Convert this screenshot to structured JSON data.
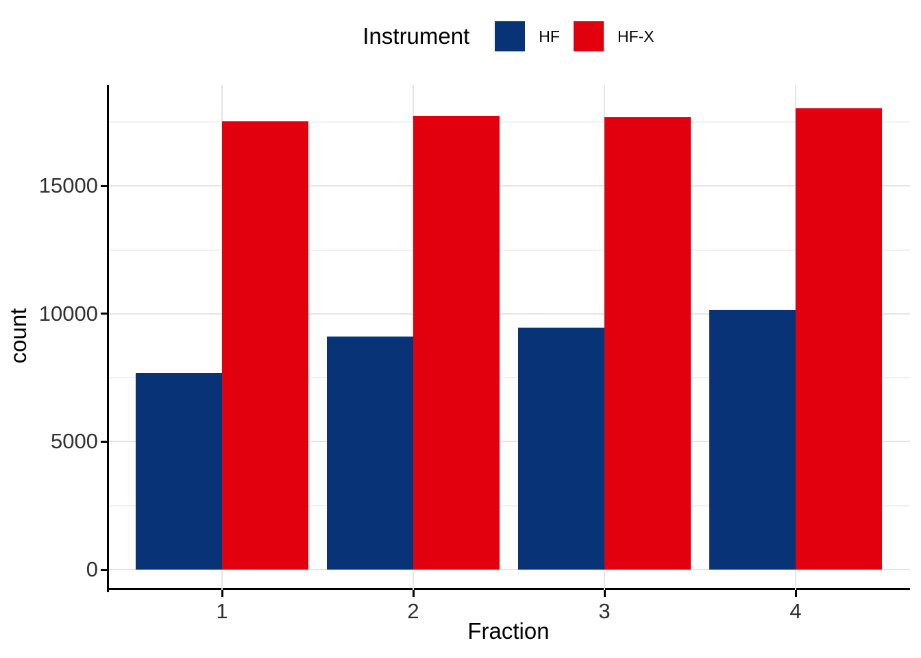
{
  "chart_data": {
    "type": "bar",
    "title": "",
    "xlabel": "Fraction",
    "ylabel": "count",
    "legend": {
      "title": "Instrument",
      "position": "top"
    },
    "categories": [
      "1",
      "2",
      "3",
      "4"
    ],
    "series": [
      {
        "name": "HF",
        "color": "#093377",
        "values": [
          7690,
          9110,
          9450,
          10160
        ]
      },
      {
        "name": "HF-X",
        "color": "#E3000E",
        "values": [
          17530,
          17740,
          17680,
          18020
        ]
      }
    ],
    "ylim": [
      0,
      18900
    ],
    "yticks": [
      0,
      5000,
      10000,
      15000
    ],
    "y_minor_gridlines": [
      2500,
      7500,
      12500,
      17500
    ],
    "xticks": [
      1,
      2,
      3,
      4
    ],
    "grid": "horizontal major+minor, vertical major at ticks",
    "bar_group_layout": "dodged, width 0.45 per bar",
    "axis_line_color": "#000000",
    "major_grid_color": "#e4e4e4",
    "minor_grid_color": "#f1f1f1"
  }
}
